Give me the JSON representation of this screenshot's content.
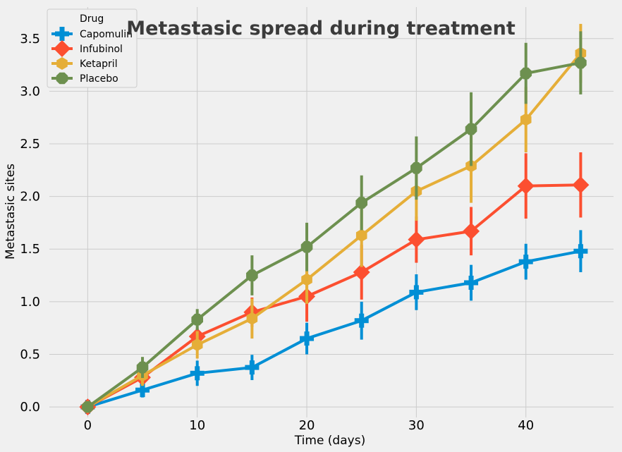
{
  "chart_data": {
    "type": "line",
    "title": "Metastasic spread during treatment",
    "xlabel": "Time (days)",
    "ylabel": "Metastasic sites",
    "xlim": [
      -3.5,
      48
    ],
    "ylim": [
      -0.1,
      3.8
    ],
    "x_ticks": [
      0,
      10,
      20,
      30,
      40
    ],
    "y_ticks": [
      0.0,
      0.5,
      1.0,
      1.5,
      2.0,
      2.5,
      3.0,
      3.5
    ],
    "x_tick_labels": [
      "0",
      "10",
      "20",
      "30",
      "40"
    ],
    "y_tick_labels": [
      "0.0",
      "0.5",
      "1.0",
      "1.5",
      "2.0",
      "2.5",
      "3.0",
      "3.5"
    ],
    "grid": true,
    "legend_title": "Drug",
    "legend_position": "top-left",
    "x": [
      0,
      5,
      10,
      15,
      20,
      25,
      30,
      35,
      40,
      45
    ],
    "series": [
      {
        "name": "Capomulin",
        "color": "#008fd5",
        "marker": "plus",
        "values": [
          0.0,
          0.16,
          0.32,
          0.375,
          0.65,
          0.82,
          1.09,
          1.18,
          1.38,
          1.48
        ],
        "errors": [
          0.0,
          0.07,
          0.12,
          0.12,
          0.15,
          0.18,
          0.17,
          0.17,
          0.17,
          0.2
        ]
      },
      {
        "name": "Infubinol",
        "color": "#fc4f30",
        "marker": "diamond",
        "values": [
          0.0,
          0.28,
          0.67,
          0.9,
          1.05,
          1.28,
          1.59,
          1.67,
          2.1,
          2.11
        ],
        "errors": [
          0.0,
          0.05,
          0.08,
          0.14,
          0.24,
          0.26,
          0.22,
          0.23,
          0.31,
          0.31
        ]
      },
      {
        "name": "Ketapril",
        "color": "#e5ae38",
        "marker": "hexagon",
        "values": [
          0.0,
          0.3,
          0.59,
          0.84,
          1.21,
          1.63,
          2.05,
          2.29,
          2.73,
          3.36
        ],
        "errors": [
          0.0,
          0.1,
          0.13,
          0.19,
          0.23,
          0.3,
          0.28,
          0.35,
          0.31,
          0.28
        ]
      },
      {
        "name": "Placebo",
        "color": "#6d904f",
        "marker": "octagon",
        "values": [
          0.0,
          0.375,
          0.83,
          1.25,
          1.52,
          1.94,
          2.27,
          2.64,
          3.17,
          3.27
        ],
        "errors": [
          0.0,
          0.1,
          0.1,
          0.19,
          0.23,
          0.26,
          0.3,
          0.35,
          0.29,
          0.3
        ]
      }
    ]
  }
}
